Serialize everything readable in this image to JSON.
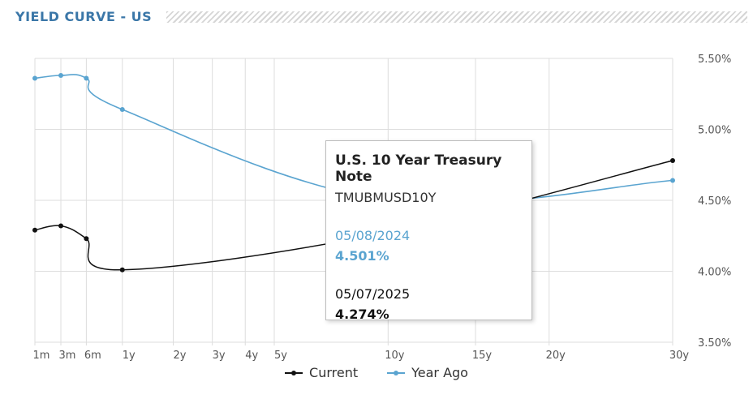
{
  "header": {
    "title": "YIELD CURVE - US"
  },
  "colors": {
    "current": "#111111",
    "year_ago": "#5aa4d0",
    "grid": "#dddddd",
    "title": "#3b77a8"
  },
  "chart_data": {
    "type": "line",
    "categories": [
      "1m",
      "3m",
      "6m",
      "1y",
      "2y",
      "3y",
      "4y",
      "5y",
      "10y",
      "15y",
      "20y",
      "30y"
    ],
    "category_months": [
      1,
      3,
      6,
      12,
      24,
      36,
      48,
      60,
      120,
      180,
      240,
      360
    ],
    "y_ticks": [
      "3.50%",
      "4.00%",
      "4.50%",
      "5.00%",
      "5.50%"
    ],
    "ylim": [
      3.5,
      5.5
    ],
    "grid": true,
    "legend_position": "bottom",
    "series": [
      {
        "name": "Current",
        "points": [
          {
            "x": "1m",
            "y": 4.29
          },
          {
            "x": "3m",
            "y": 4.32
          },
          {
            "x": "6m",
            "y": 4.23
          },
          {
            "x": "1y",
            "y": 4.01
          },
          {
            "x": "10y",
            "y": 4.274
          },
          {
            "x": "30y",
            "y": 4.78
          }
        ]
      },
      {
        "name": "Year Ago",
        "points": [
          {
            "x": "1m",
            "y": 5.36
          },
          {
            "x": "3m",
            "y": 5.38
          },
          {
            "x": "6m",
            "y": 5.36
          },
          {
            "x": "1y",
            "y": 5.14
          },
          {
            "x": "10y",
            "y": 4.501
          },
          {
            "x": "30y",
            "y": 4.64
          }
        ]
      }
    ]
  },
  "tooltip": {
    "title": "U.S. 10 Year Treasury Note",
    "symbol": "TMUBMUSD10Y",
    "prev_date": "05/08/2024",
    "prev_value": "4.501%",
    "cur_date": "05/07/2025",
    "cur_value": "4.274%"
  }
}
